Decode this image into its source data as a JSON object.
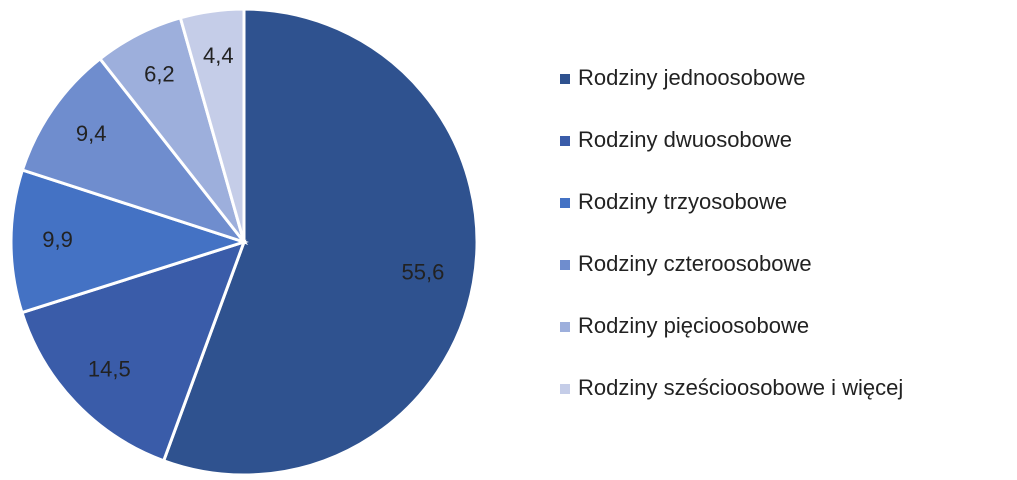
{
  "chart_data": {
    "type": "pie",
    "categories": [
      "Rodziny jednoosobowe",
      "Rodziny dwuosobowe",
      "Rodziny trzyosobowe",
      "Rodziny czteroosobowe",
      "Rodziny pięcioosobowe",
      "Rodziny sześcioosobowe i więcej"
    ],
    "values": [
      55.6,
      14.5,
      9.9,
      9.4,
      6.2,
      4.4
    ],
    "value_labels": [
      "55,6",
      "14,5",
      "9,9",
      "9,4",
      "6,2",
      "4,4"
    ],
    "colors": [
      "#2f528f",
      "#3a5ca9",
      "#4472c4",
      "#6f8dce",
      "#9dafdc",
      "#c5cde8"
    ],
    "legend": "right"
  }
}
